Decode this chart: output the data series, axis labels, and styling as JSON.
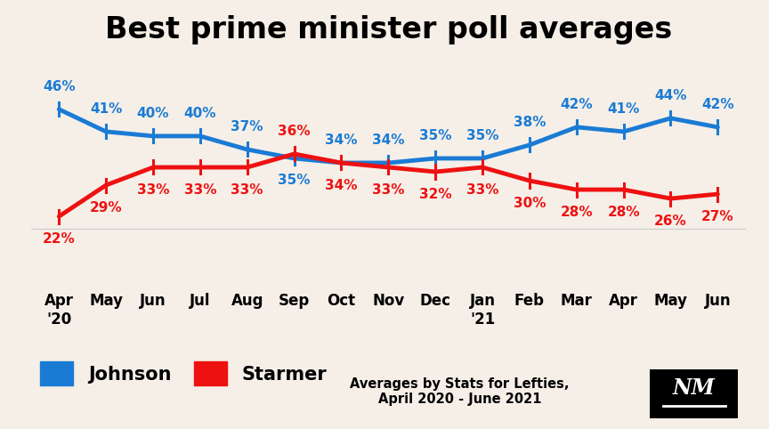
{
  "title": "Best prime minister poll averages",
  "johnson_y": [
    46,
    41,
    40,
    40,
    37,
    35,
    34,
    34,
    35,
    35,
    38,
    42,
    41,
    44,
    42
  ],
  "starmer_y": [
    22,
    29,
    33,
    33,
    33,
    36,
    34,
    33,
    32,
    33,
    30,
    28,
    28,
    26,
    27
  ],
  "x_labels": [
    "Apr\n'20",
    "May",
    "Jun",
    "Jul",
    "Aug",
    "Sep",
    "Oct",
    "Nov",
    "Dec",
    "Jan\n'21",
    "Feb",
    "Mar",
    "Apr",
    "May",
    "Jun"
  ],
  "johnson_color": "#1a7bd4",
  "starmer_color": "#ee1111",
  "background_color": "#f5efe8",
  "title_fontsize": 24,
  "annotation_fontsize": 11,
  "xlabel_fontsize": 12,
  "legend_fontsize": 15,
  "attribution": "Averages by Stats for Lefties,\nApril 2020 - June 2021",
  "johnson_label_above": [
    true,
    true,
    true,
    true,
    true,
    false,
    true,
    true,
    true,
    true,
    true,
    true,
    true,
    true,
    true
  ],
  "starmer_label_above": [
    false,
    false,
    false,
    false,
    false,
    true,
    false,
    false,
    false,
    false,
    false,
    false,
    false,
    false,
    false
  ]
}
